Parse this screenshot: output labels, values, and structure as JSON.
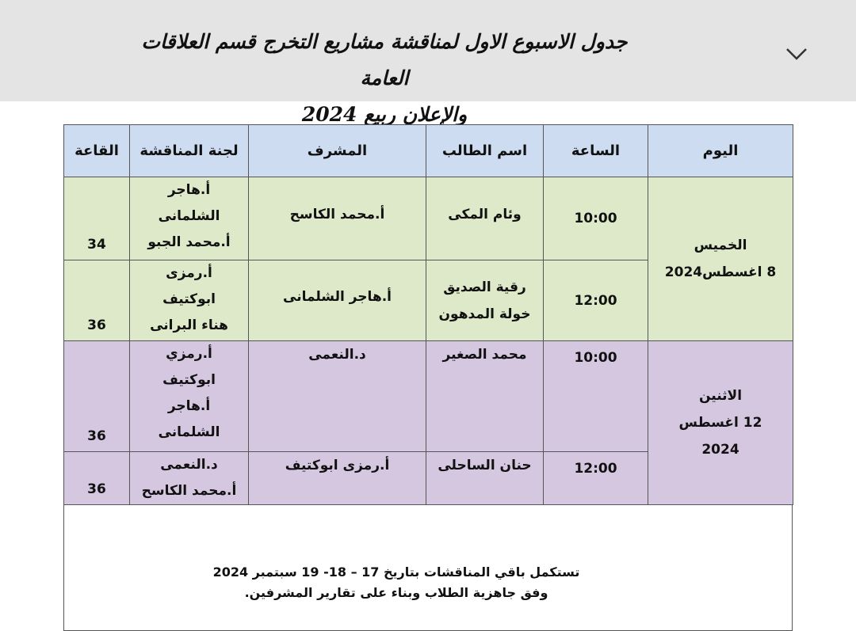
{
  "header": {
    "title": [
      "جدول الاسبوع الاول لمناقشة مشاريع التخرج قسم العلاقات العامة",
      "والإعلان ربيع 2024"
    ]
  },
  "table": {
    "columns": [
      "اليوم",
      "الساعة",
      "اسم الطالب",
      "المشرف",
      "لجنة المناقشة",
      "القاعة"
    ],
    "days": [
      {
        "day": [
          "الخميس",
          "8 اغسطس2024"
        ],
        "sessions": [
          {
            "time": "10:00",
            "student": [
              "وئام المكى"
            ],
            "supervisor": [
              "أ.محمد الكاسح"
            ],
            "committee": [
              "أ.هاجر",
              "الشلمانى",
              "أ.محمد الجبو"
            ],
            "room": "34"
          },
          {
            "time": "12:00",
            "student": [
              "رقية الصديق",
              "خولة المدهون"
            ],
            "supervisor": [
              "أ.هاجر الشلمانى"
            ],
            "committee": [
              "أ.رمزى",
              "ابوكتيف",
              "هناء البرانى"
            ],
            "room": "36"
          }
        ]
      },
      {
        "day": [
          "الاثنين",
          "12 اغسطس",
          "2024"
        ],
        "sessions": [
          {
            "time": "10:00",
            "student": [
              "محمد الصغير"
            ],
            "supervisor": [
              "د.النعمى"
            ],
            "committee": [
              "أ.رمزي",
              "ابوكتيف",
              "أ.هاجر",
              "الشلمانى"
            ],
            "room": "36"
          },
          {
            "time": "12:00",
            "student": [
              "حنان الساحلى"
            ],
            "supervisor": [
              "أ.رمزى ابوكتيف"
            ],
            "committee": [
              "د.النعمى",
              "أ.محمد الكاسح"
            ],
            "room": "36"
          }
        ]
      }
    ]
  },
  "footer": {
    "lines": [
      "تستكمل باقي المناقشات بتاريخ 17 – 18- 19 سبتمبر 2024",
      "وفق جاهزية الطلاب وبناء على تقارير المشرفين."
    ]
  }
}
